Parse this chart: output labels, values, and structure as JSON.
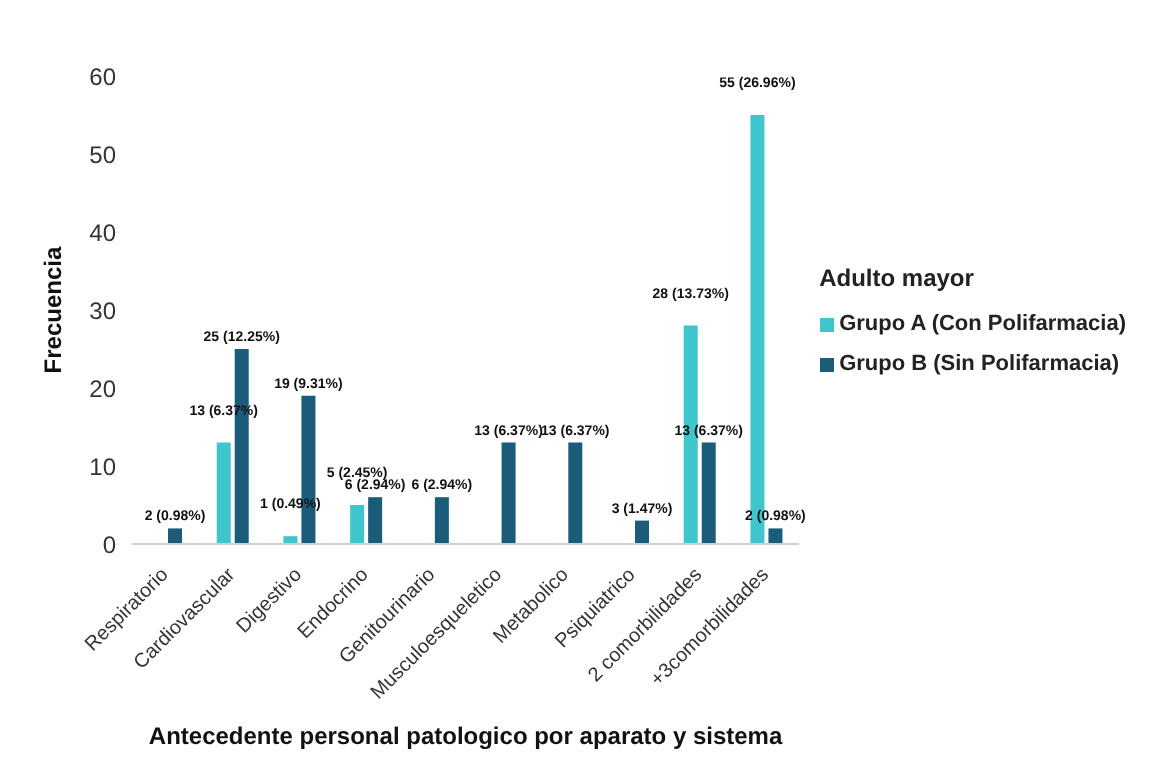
{
  "chart_data": {
    "type": "bar",
    "xlabel": "Antecedente personal patologico por aparato y sistema",
    "ylabel": "Frecuencia",
    "legend_title": "Adulto mayor",
    "categories": [
      "Respiratorio",
      "Cardiovascular",
      "Digestivo",
      "Endocrino",
      "Genitourinario",
      "Musculoesqueletico",
      "Metabolico",
      "Psiquiatrico",
      "2 comorbilidades",
      "+3comorbilidades"
    ],
    "series": [
      {
        "name": "Grupo A (Con Polifarmacia)",
        "color": "#3ec6cc",
        "values": [
          0,
          13,
          1,
          5,
          0,
          0,
          0,
          0,
          28,
          55
        ],
        "value_labels": [
          null,
          "13 (6.37%)",
          "1 (0.49%)",
          "5 (2.45%)",
          null,
          null,
          null,
          null,
          "28 (13.73%)",
          "55 (26.96%)"
        ]
      },
      {
        "name": "Grupo B (Sin Polifarmacia)",
        "color": "#1b5c7a",
        "values": [
          2,
          25,
          19,
          6,
          6,
          13,
          13,
          3,
          13,
          2
        ],
        "value_labels": [
          "2 (0.98%)",
          "25 (12.25%)",
          "19 (9.31%)",
          "6 (2.94%)",
          "6 (2.94%)",
          "13 (6.37%)",
          "13 (6.37%)",
          "3 (1.47%)",
          "13 (6.37%)",
          "2 (0.98%)"
        ]
      }
    ],
    "ylim": [
      0,
      60
    ],
    "yticks": [
      0,
      10,
      20,
      30,
      40,
      50,
      60
    ],
    "grid": false,
    "legend": "right"
  }
}
